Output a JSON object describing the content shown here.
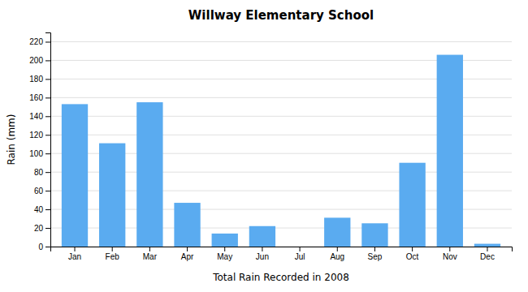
{
  "chart_data": {
    "type": "bar",
    "title": "Willway Elementary School",
    "xlabel": "Total Rain Recorded in 2008",
    "ylabel": "Rain (mm)",
    "categories": [
      "Jan",
      "Feb",
      "Mar",
      "Apr",
      "May",
      "Jun",
      "Jul",
      "Aug",
      "Sep",
      "Oct",
      "Nov",
      "Dec"
    ],
    "values": [
      153,
      111,
      155,
      47,
      14,
      22,
      0,
      31,
      25,
      90,
      206,
      3
    ],
    "color": "#5aabf0",
    "ylim": [
      0,
      230
    ],
    "yticks": [
      0,
      20,
      40,
      60,
      80,
      100,
      120,
      140,
      160,
      180,
      200,
      220
    ],
    "grid": true
  }
}
